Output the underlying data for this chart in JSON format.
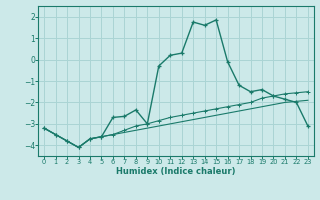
{
  "background_color": "#cce9e9",
  "grid_color": "#aad4d4",
  "line_color": "#1a7a6a",
  "xlabel": "Humidex (Indice chaleur)",
  "xlim": [
    -0.5,
    23.5
  ],
  "ylim": [
    -4.5,
    2.5
  ],
  "yticks": [
    -4,
    -3,
    -2,
    -1,
    0,
    1,
    2
  ],
  "xticks": [
    0,
    1,
    2,
    3,
    4,
    5,
    6,
    7,
    8,
    9,
    10,
    11,
    12,
    13,
    14,
    15,
    16,
    17,
    18,
    19,
    20,
    21,
    22,
    23
  ],
  "s1_x": [
    0,
    1,
    2,
    3,
    4,
    5,
    6,
    7,
    8,
    9,
    10,
    11,
    12,
    13,
    14,
    15,
    16,
    17,
    18,
    19,
    20,
    21,
    22,
    23
  ],
  "s1_y": [
    -3.2,
    -3.5,
    -3.8,
    -4.1,
    -3.7,
    -3.6,
    -3.5,
    -3.4,
    -3.3,
    -3.2,
    -3.1,
    -3.0,
    -2.9,
    -2.8,
    -2.7,
    -2.6,
    -2.5,
    -2.4,
    -2.3,
    -2.2,
    -2.1,
    -2.0,
    -1.95,
    -1.9
  ],
  "s2_x": [
    0,
    1,
    2,
    3,
    4,
    5,
    6,
    7,
    8,
    9,
    10,
    11,
    12,
    13,
    14,
    15,
    16,
    17,
    18,
    19,
    20,
    21,
    22,
    23
  ],
  "s2_y": [
    -3.2,
    -3.5,
    -3.8,
    -4.1,
    -3.7,
    -3.6,
    -3.5,
    -3.3,
    -3.1,
    -3.0,
    -2.85,
    -2.7,
    -2.6,
    -2.5,
    -2.4,
    -2.3,
    -2.2,
    -2.1,
    -2.0,
    -1.8,
    -1.7,
    -1.6,
    -1.55,
    -1.5
  ],
  "s3_x": [
    0,
    1,
    2,
    3,
    4,
    5,
    6,
    7,
    8,
    9,
    10,
    11,
    12,
    13,
    14,
    15,
    16,
    17,
    18,
    19,
    20,
    21,
    22,
    23
  ],
  "s3_y": [
    -3.2,
    -3.5,
    -3.8,
    -4.1,
    -3.7,
    -3.6,
    -2.7,
    -2.65,
    -2.35,
    -3.0,
    -0.3,
    0.2,
    0.3,
    1.75,
    1.6,
    1.85,
    -0.1,
    -1.2,
    -1.5,
    -1.4,
    -1.7,
    -1.85,
    -2.0,
    -3.1
  ]
}
